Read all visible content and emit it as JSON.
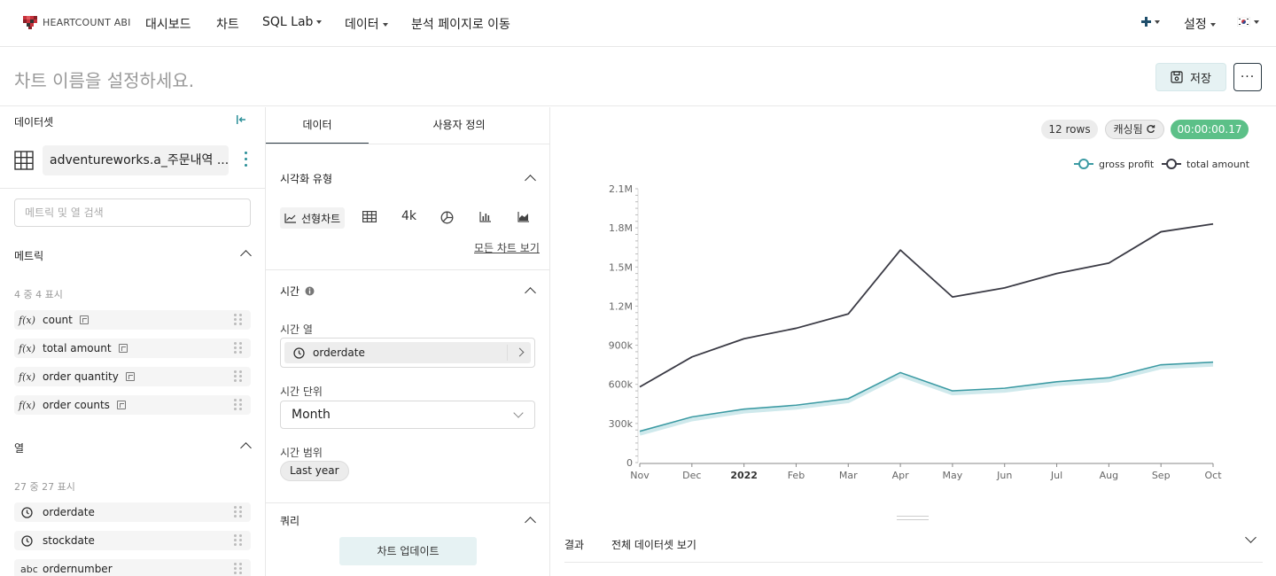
{
  "brand": {
    "name": "HEARTCOUNT ABI"
  },
  "nav": {
    "items": [
      "대시보드",
      "차트",
      "SQL Lab",
      "데이터",
      "분석 페이지로 이동"
    ],
    "plus_icon": "plus-icon",
    "settings_label": "설정",
    "language_icon": "korea-flag-icon"
  },
  "title_bar": {
    "placeholder": "차트 이름을 설정하세요.",
    "save_label": "저장",
    "more_label": "···"
  },
  "dataset_panel": {
    "header": "데이터셋",
    "dataset_name": "adventureworks.a_주문내역 ...",
    "search_placeholder": "메트릭 및 열 검색",
    "metrics_title": "메트릭",
    "metrics_count": "4 중 4 표시",
    "metrics": [
      {
        "icon": "f(x)",
        "label": "count"
      },
      {
        "icon": "f(x)",
        "label": "total amount"
      },
      {
        "icon": "f(x)",
        "label": "order quantity"
      },
      {
        "icon": "f(x)",
        "label": "order counts"
      }
    ],
    "columns_title": "열",
    "columns_count": "27 중 27 표시",
    "columns": [
      {
        "icon": "clock-icon",
        "label": "orderdate"
      },
      {
        "icon": "clock-icon",
        "label": "stockdate"
      },
      {
        "icon": "abc",
        "label": "ordernumber"
      }
    ]
  },
  "config_panel": {
    "tabs": [
      "데이터",
      "사용자 정의"
    ],
    "viz_title": "시각화 유형",
    "viz_active_label": "선형차트",
    "viz_big_number_label": "4k",
    "all_charts_link": "모든 차트 보기",
    "time_title": "시간",
    "time_column_label": "시간 열",
    "time_column_value": "orderdate",
    "time_grain_label": "시간 단위",
    "time_grain_value": "Month",
    "time_range_label": "시간 범위",
    "time_range_value": "Last year",
    "query_title": "쿼리",
    "update_button": "차트 업데이트"
  },
  "result_panel": {
    "rows_badge": "12 rows",
    "cached_badge": "캐싱됨",
    "time_badge": "00:00:00.17",
    "results_label": "결과",
    "full_dataset_label": "전체 데이터셋 보기"
  },
  "colors": {
    "accent": "#2a8f98",
    "gross_profit": "#3b9aa3",
    "total_amount": "#3a3a44",
    "time_badge": "#5cc088"
  },
  "chart_data": {
    "type": "line",
    "x": [
      "Nov",
      "Dec",
      "2022",
      "Feb",
      "Mar",
      "Apr",
      "May",
      "Jun",
      "Jul",
      "Aug",
      "Sep",
      "Oct"
    ],
    "series": [
      {
        "name": "gross profit",
        "values": [
          240000,
          350000,
          410000,
          440000,
          490000,
          690000,
          550000,
          570000,
          620000,
          650000,
          750000,
          770000
        ]
      },
      {
        "name": "total amount",
        "values": [
          580000,
          810000,
          950000,
          1030000,
          1140000,
          1630000,
          1270000,
          1340000,
          1450000,
          1530000,
          1770000,
          1830000
        ]
      }
    ],
    "y_ticks": [
      "0",
      "300k",
      "600k",
      "900k",
      "1.2M",
      "1.5M",
      "1.8M",
      "2.1M"
    ],
    "ylim": [
      0,
      2100000
    ],
    "legend_position": "top-right",
    "grid": true
  }
}
